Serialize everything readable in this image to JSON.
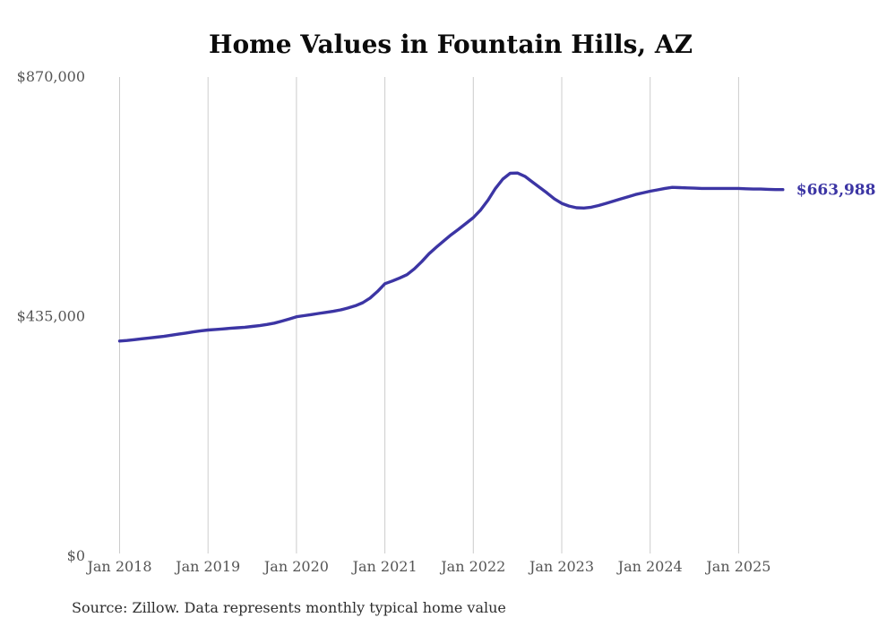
{
  "page": {
    "source_note": "Source: Zillow. Data represents monthly typical home value"
  },
  "colors": {
    "line": "#3c35a4",
    "grid": "#cccccc",
    "tick_text": "#555555",
    "title_text": "#0b0b0b",
    "source_text": "#2e2e2e",
    "end_label_text": "#3c35a4"
  },
  "chart_data": {
    "type": "line",
    "title": "Home Values in Fountain Hills, AZ",
    "xlabel": "",
    "ylabel": "",
    "x_start": "2018-01",
    "x_interval": "monthly",
    "x_tick_labels": [
      "Jan 2018",
      "Jan 2019",
      "Jan 2020",
      "Jan 2021",
      "Jan 2022",
      "Jan 2023",
      "Jan 2024",
      "Jan 2025"
    ],
    "y_ticks": [
      {
        "label": "$0",
        "value": 0
      },
      {
        "label": "$435,000",
        "value": 435000
      },
      {
        "label": "$870,000",
        "value": 870000
      }
    ],
    "ylim": [
      0,
      870000
    ],
    "grid": "vertical-only",
    "legend": "none",
    "end_label": "$663,988",
    "series": [
      {
        "name": "Monthly typical home value",
        "values": [
          389000,
          390000,
          391500,
          393000,
          394500,
          396000,
          397500,
          399500,
          401500,
          403500,
          405500,
          407500,
          409000,
          410000,
          411000,
          412000,
          413000,
          414000,
          415500,
          417000,
          419000,
          421500,
          425000,
          429000,
          433000,
          435000,
          437000,
          439000,
          441000,
          443000,
          445500,
          449000,
          453000,
          458500,
          467000,
          479000,
          493000,
          498000,
          503500,
          509500,
          520000,
          533000,
          547500,
          559500,
          571000,
          582000,
          592000,
          602500,
          613000,
          627000,
          645000,
          666000,
          683000,
          693500,
          694000,
          688000,
          678000,
          668000,
          658000,
          647000,
          639000,
          634000,
          631000,
          630500,
          632000,
          635000,
          639000,
          643000,
          647000,
          651000,
          655000,
          658000,
          661000,
          663500,
          666000,
          668000,
          667500,
          667000,
          666500,
          666000,
          666000,
          666000,
          666000,
          666000,
          666000,
          665500,
          665000,
          665000,
          664500,
          664000,
          663988
        ]
      }
    ]
  }
}
